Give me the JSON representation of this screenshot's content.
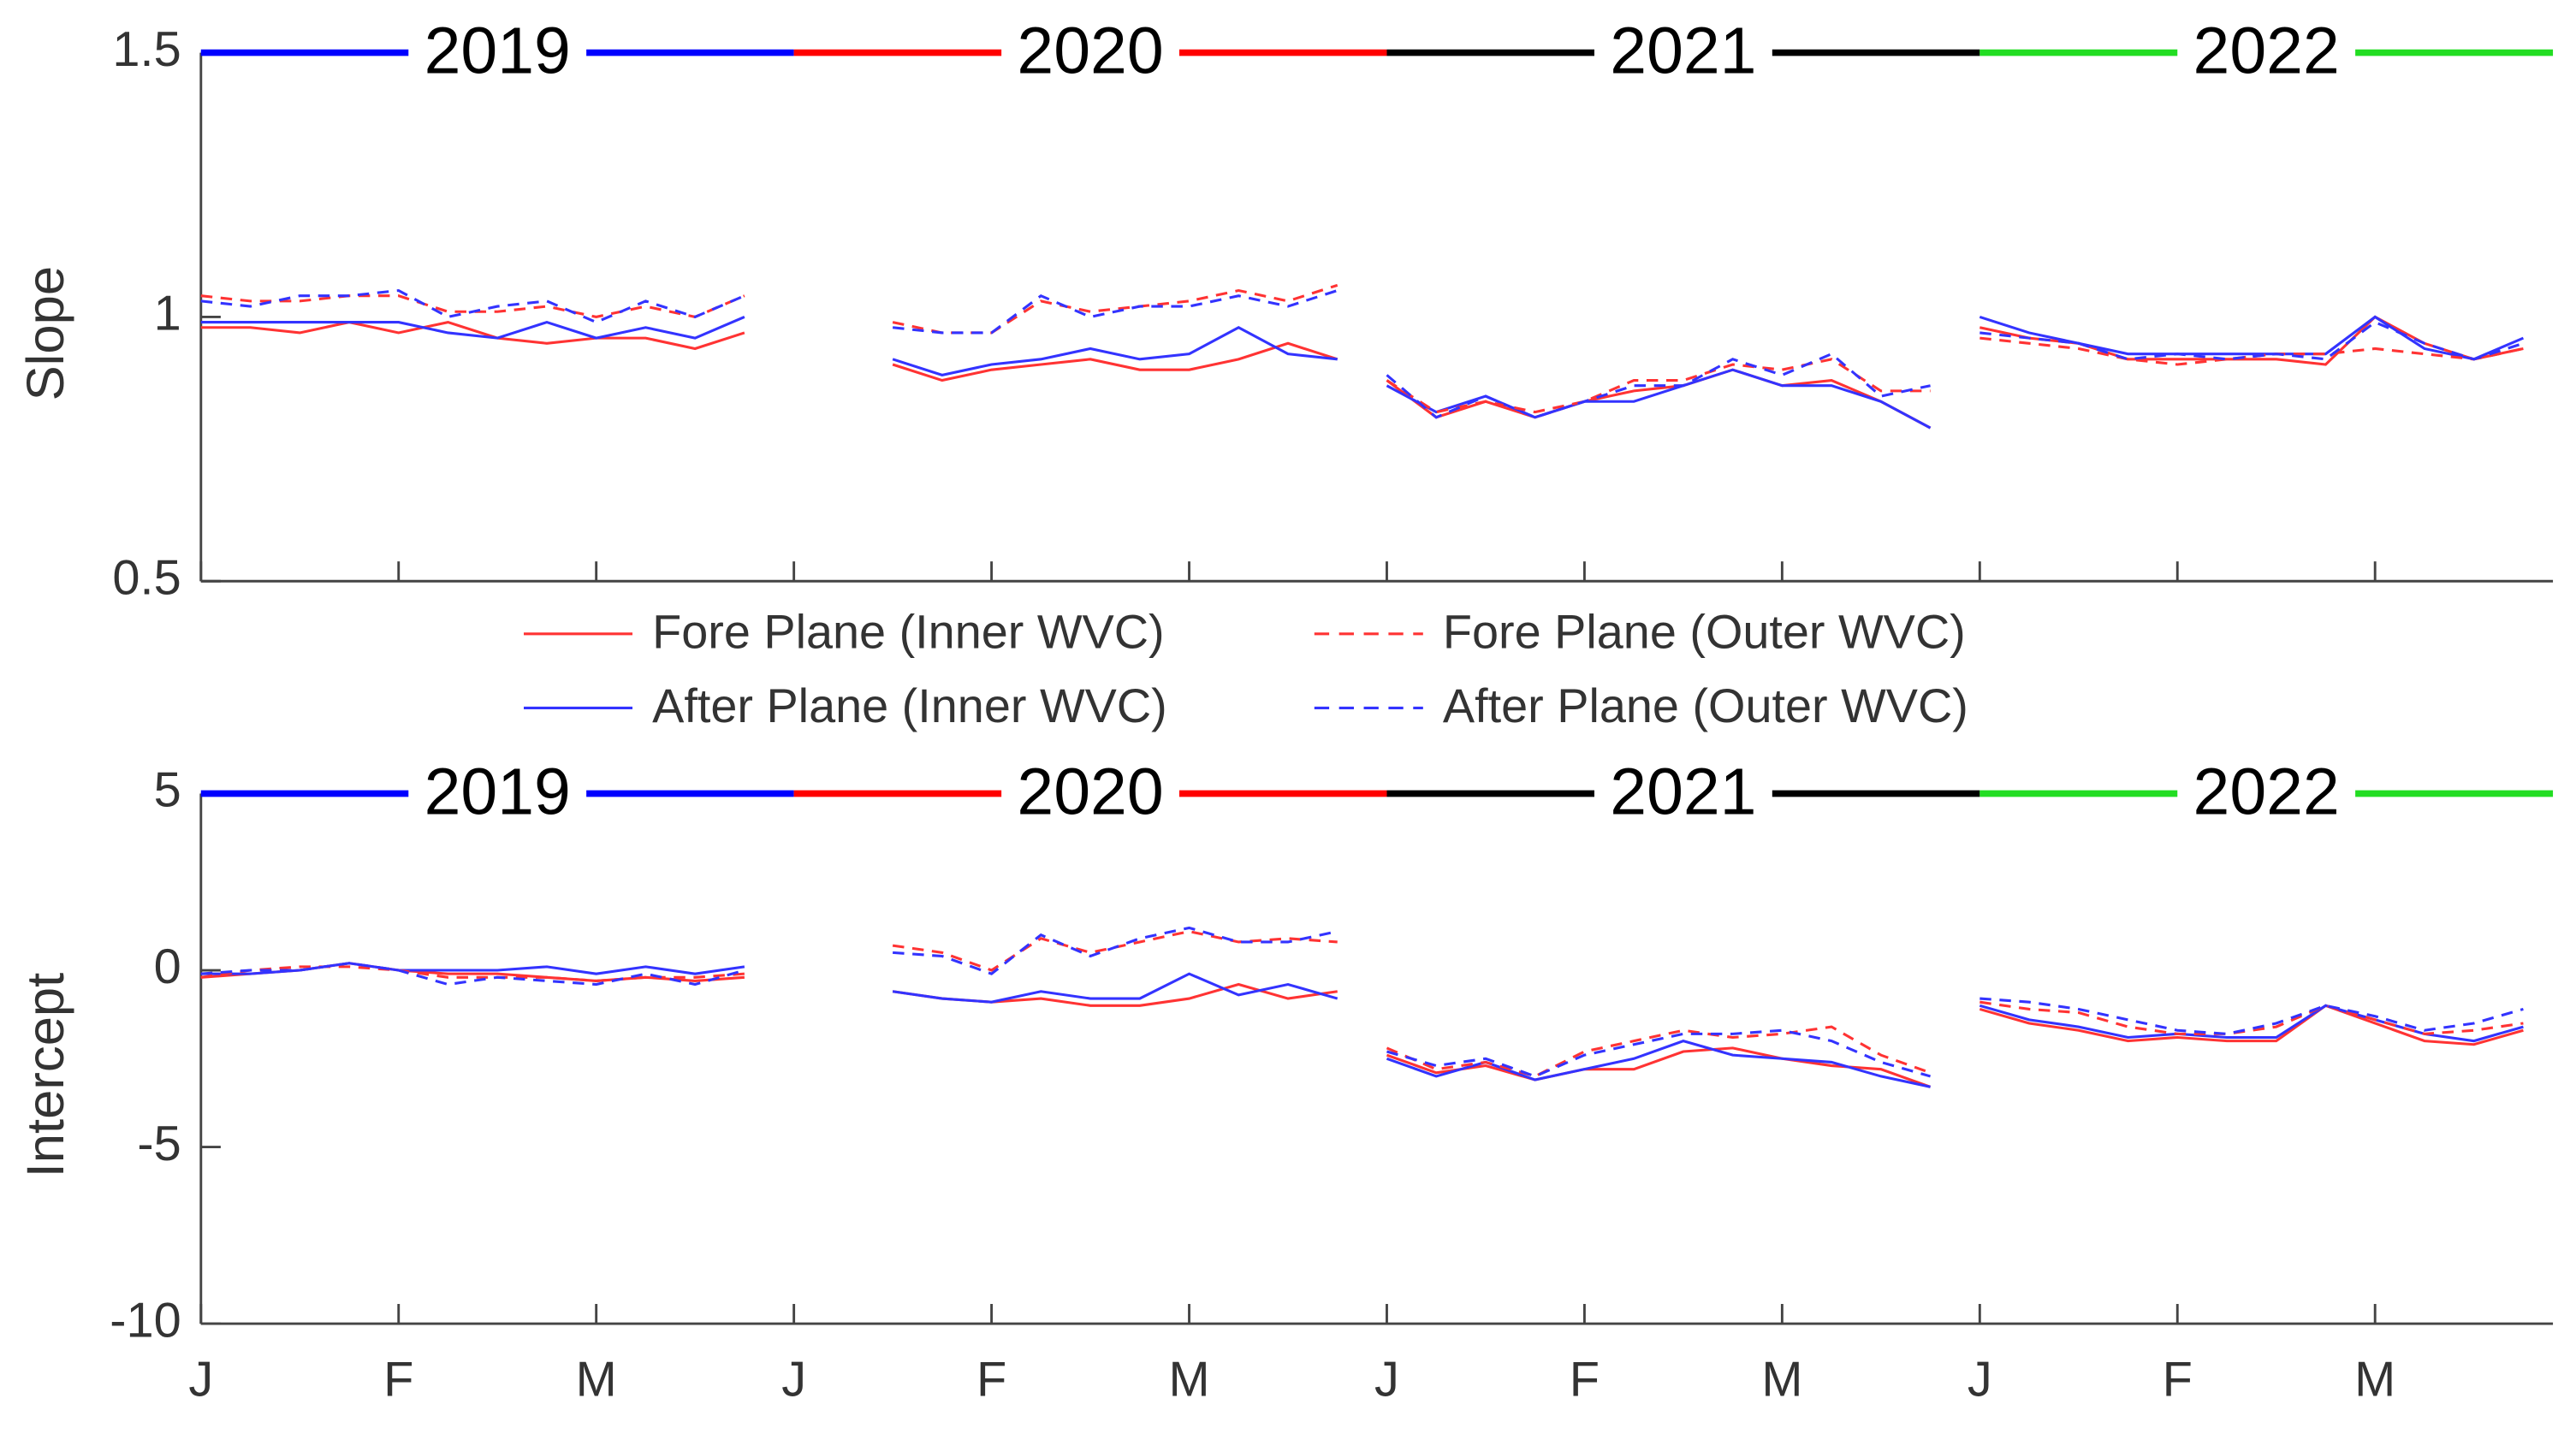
{
  "chart_data": [
    {
      "type": "line",
      "ylabel": "Slope",
      "ylim": [
        0.5,
        1.5
      ],
      "yticks": [
        0.5,
        1,
        1.5
      ],
      "xlim": [
        0,
        11.9
      ],
      "xticks": [
        0,
        1,
        2,
        3,
        4,
        5,
        6,
        7,
        8,
        9,
        10,
        11
      ],
      "x": [
        0,
        0.25,
        0.5,
        0.75,
        1,
        1.25,
        1.5,
        1.75,
        2,
        2.25,
        2.5,
        2.75,
        3.25,
        3.5,
        3.75,
        4,
        4.25,
        4.5,
        4.75,
        5,
        5.25,
        5.5,
        5.75,
        5.875,
        6,
        6.25,
        6.5,
        6.75,
        7,
        7.25,
        7.5,
        7.75,
        8,
        8.25,
        8.5,
        8.75,
        8.875,
        9,
        9.25,
        9.5,
        9.75,
        10,
        10.25,
        10.5,
        10.75,
        11,
        11.25,
        11.5,
        11.75
      ],
      "year_bands": [
        {
          "label": "2019",
          "color": "#0000ff",
          "start": 0,
          "end": 3
        },
        {
          "label": "2020",
          "color": "#ff0000",
          "start": 3,
          "end": 6
        },
        {
          "label": "2021",
          "color": "#000000",
          "start": 6,
          "end": 9
        },
        {
          "label": "2022",
          "color": "#22dd22",
          "start": 9,
          "end": 11.9
        }
      ],
      "legend": "bottom",
      "series": [
        {
          "name": "Fore Plane (Inner WVC)",
          "color": "#ff3333",
          "style": "solid",
          "values": [
            0.98,
            0.98,
            0.97,
            0.99,
            0.97,
            0.99,
            0.96,
            0.95,
            0.96,
            0.96,
            0.94,
            0.97,
            null,
            0.91,
            0.88,
            0.9,
            0.91,
            0.92,
            0.9,
            0.9,
            0.92,
            0.95,
            0.92,
            null,
            0.88,
            0.81,
            0.84,
            0.81,
            0.84,
            0.86,
            0.87,
            0.9,
            0.87,
            0.88,
            0.84,
            0.79,
            null,
            0.98,
            0.96,
            0.95,
            0.92,
            0.92,
            0.92,
            0.92,
            0.91,
            1.0,
            0.95,
            0.92,
            0.94
          ]
        },
        {
          "name": "After Plane (Inner WVC)",
          "color": "#3333ff",
          "style": "solid",
          "values": [
            0.99,
            0.99,
            0.99,
            0.99,
            0.99,
            0.97,
            0.96,
            0.99,
            0.96,
            0.98,
            0.96,
            1.0,
            null,
            0.92,
            0.89,
            0.91,
            0.92,
            0.94,
            0.92,
            0.93,
            0.98,
            0.93,
            0.92,
            null,
            0.87,
            0.82,
            0.85,
            0.81,
            0.84,
            0.84,
            0.87,
            0.9,
            0.87,
            0.87,
            0.84,
            0.79,
            null,
            1.0,
            0.97,
            0.95,
            0.93,
            0.93,
            0.93,
            0.93,
            0.93,
            1.0,
            0.94,
            0.92,
            0.96
          ]
        },
        {
          "name": "Fore Plane (Outer WVC)",
          "color": "#ff3333",
          "style": "dashed",
          "values": [
            1.04,
            1.03,
            1.03,
            1.04,
            1.04,
            1.01,
            1.01,
            1.02,
            1.0,
            1.02,
            1.0,
            1.04,
            null,
            0.99,
            0.97,
            0.97,
            1.03,
            1.01,
            1.02,
            1.03,
            1.05,
            1.03,
            1.06,
            null,
            0.88,
            0.82,
            0.84,
            0.82,
            0.84,
            0.88,
            0.88,
            0.91,
            0.9,
            0.92,
            0.86,
            0.86,
            null,
            0.96,
            0.95,
            0.94,
            0.92,
            0.91,
            0.92,
            0.93,
            0.93,
            0.94,
            0.93,
            0.92,
            0.94
          ]
        },
        {
          "name": "After Plane (Outer WVC)",
          "color": "#3333ff",
          "style": "dashed",
          "values": [
            1.03,
            1.02,
            1.04,
            1.04,
            1.05,
            1.0,
            1.02,
            1.03,
            0.99,
            1.03,
            1.0,
            1.04,
            null,
            0.98,
            0.97,
            0.97,
            1.04,
            1.0,
            1.02,
            1.02,
            1.04,
            1.02,
            1.05,
            null,
            0.89,
            0.81,
            0.85,
            0.81,
            0.84,
            0.87,
            0.87,
            0.92,
            0.89,
            0.93,
            0.85,
            0.87,
            null,
            0.97,
            0.96,
            0.95,
            0.92,
            0.93,
            0.92,
            0.93,
            0.92,
            0.99,
            0.95,
            0.92,
            0.95
          ]
        }
      ]
    },
    {
      "type": "line",
      "ylabel": "Intercept",
      "ylim": [
        -10,
        5
      ],
      "yticks": [
        -10,
        -5,
        0,
        5
      ],
      "xlim": [
        0,
        11.9
      ],
      "xticks": [
        {
          "value": 0,
          "label": "J"
        },
        {
          "value": 1,
          "label": "F"
        },
        {
          "value": 2,
          "label": "M"
        },
        {
          "value": 3,
          "label": "J"
        },
        {
          "value": 4,
          "label": "F"
        },
        {
          "value": 5,
          "label": "M"
        },
        {
          "value": 6,
          "label": "J"
        },
        {
          "value": 7,
          "label": "F"
        },
        {
          "value": 8,
          "label": "M"
        },
        {
          "value": 9,
          "label": "J"
        },
        {
          "value": 10,
          "label": "F"
        },
        {
          "value": 11,
          "label": "M"
        }
      ],
      "x": [
        0,
        0.25,
        0.5,
        0.75,
        1,
        1.25,
        1.5,
        1.75,
        2,
        2.25,
        2.5,
        2.75,
        3.25,
        3.5,
        3.75,
        4,
        4.25,
        4.5,
        4.75,
        5,
        5.25,
        5.5,
        5.75,
        5.875,
        6,
        6.25,
        6.5,
        6.75,
        7,
        7.25,
        7.5,
        7.75,
        8,
        8.25,
        8.5,
        8.75,
        8.875,
        9,
        9.25,
        9.5,
        9.75,
        10,
        10.25,
        10.5,
        10.75,
        11,
        11.25,
        11.5,
        11.75
      ],
      "year_bands": [
        {
          "label": "2019",
          "color": "#0000ff",
          "start": 0,
          "end": 3
        },
        {
          "label": "2020",
          "color": "#ff0000",
          "start": 3,
          "end": 6
        },
        {
          "label": "2021",
          "color": "#000000",
          "start": 6,
          "end": 9
        },
        {
          "label": "2022",
          "color": "#22dd22",
          "start": 9,
          "end": 11.9
        }
      ],
      "series": [
        {
          "color": "#ff3333",
          "style": "solid",
          "values": [
            -0.2,
            -0.1,
            0,
            0.2,
            0,
            -0.1,
            -0.1,
            -0.2,
            -0.3,
            -0.2,
            -0.3,
            -0.2,
            null,
            -0.6,
            -0.8,
            -0.9,
            -0.8,
            -1.0,
            -1.0,
            -0.8,
            -0.4,
            -0.8,
            -0.6,
            null,
            -2.4,
            -2.9,
            -2.7,
            -3.1,
            -2.8,
            -2.8,
            -2.3,
            -2.2,
            -2.5,
            -2.7,
            -2.8,
            -3.3,
            null,
            -1.1,
            -1.5,
            -1.7,
            -2.0,
            -1.9,
            -2.0,
            -2.0,
            -1.0,
            -1.5,
            -2.0,
            -2.1,
            -1.7
          ]
        },
        {
          "color": "#3333ff",
          "style": "solid",
          "values": [
            -0.1,
            -0.1,
            0,
            0.2,
            0,
            0,
            0,
            0.1,
            -0.1,
            0.1,
            -0.1,
            0.1,
            null,
            -0.6,
            -0.8,
            -0.9,
            -0.6,
            -0.8,
            -0.8,
            -0.1,
            -0.7,
            -0.4,
            -0.8,
            null,
            -2.5,
            -3.0,
            -2.6,
            -3.1,
            -2.8,
            -2.5,
            -2.0,
            -2.4,
            -2.5,
            -2.6,
            -3.0,
            -3.3,
            null,
            -1.0,
            -1.4,
            -1.6,
            -1.9,
            -1.8,
            -1.9,
            -1.9,
            -1.0,
            -1.4,
            -1.8,
            -2.0,
            -1.6
          ]
        },
        {
          "color": "#ff3333",
          "style": "dashed",
          "values": [
            -0.2,
            0,
            0.1,
            0.1,
            0,
            -0.2,
            -0.2,
            -0.2,
            -0.3,
            -0.2,
            -0.2,
            -0.1,
            null,
            0.7,
            0.5,
            0.0,
            0.9,
            0.5,
            0.8,
            1.1,
            0.8,
            0.9,
            0.8,
            null,
            -2.2,
            -2.8,
            -2.6,
            -3.0,
            -2.3,
            -2.0,
            -1.7,
            -1.9,
            -1.8,
            -1.6,
            -2.4,
            -2.9,
            null,
            -0.9,
            -1.1,
            -1.2,
            -1.6,
            -1.8,
            -1.8,
            -1.6,
            -1.0,
            -1.4,
            -1.8,
            -1.7,
            -1.5
          ]
        },
        {
          "color": "#3333ff",
          "style": "dashed",
          "values": [
            -0.1,
            0,
            0,
            0.2,
            0,
            -0.4,
            -0.2,
            -0.3,
            -0.4,
            -0.1,
            -0.4,
            0,
            null,
            0.5,
            0.4,
            -0.1,
            1.0,
            0.4,
            0.9,
            1.2,
            0.8,
            0.8,
            1.1,
            null,
            -2.3,
            -2.7,
            -2.5,
            -3.0,
            -2.4,
            -2.1,
            -1.8,
            -1.8,
            -1.7,
            -2.0,
            -2.6,
            -3.0,
            null,
            -0.8,
            -0.9,
            -1.1,
            -1.4,
            -1.7,
            -1.8,
            -1.5,
            -1.0,
            -1.3,
            -1.7,
            -1.5,
            -1.1
          ]
        }
      ]
    }
  ]
}
